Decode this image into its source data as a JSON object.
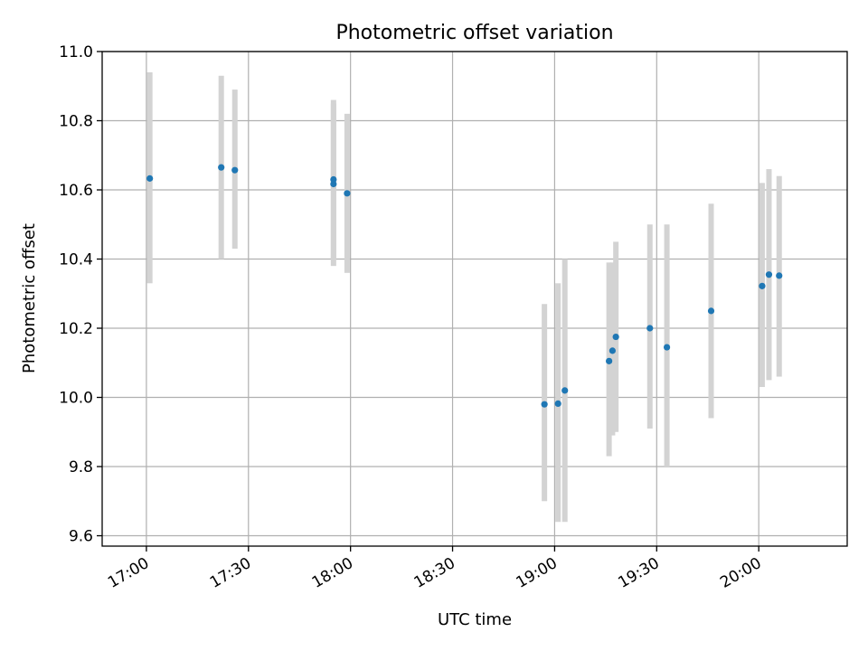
{
  "chart_data": {
    "type": "scatter",
    "title": "Photometric offset variation",
    "xlabel": "UTC time",
    "ylabel": "Photometric offset",
    "x_unit": "UTC time (HH:MM)",
    "xlim": [
      "16:47",
      "20:26"
    ],
    "ylim": [
      9.57,
      11.0
    ],
    "grid": true,
    "x_ticks": [
      "17:00",
      "17:30",
      "18:00",
      "18:30",
      "19:00",
      "19:30",
      "20:00"
    ],
    "y_ticks": [
      "9.6",
      "9.8",
      "10.0",
      "10.2",
      "10.4",
      "10.6",
      "10.8",
      "11.0"
    ],
    "point_color": "#1f77b4",
    "errorbar_color": "#d3d3d3",
    "points": [
      {
        "x": "17:01",
        "y": 10.633,
        "lo": 10.33,
        "hi": 10.94
      },
      {
        "x": "17:22",
        "y": 10.665,
        "lo": 10.4,
        "hi": 10.93
      },
      {
        "x": "17:26",
        "y": 10.657,
        "lo": 10.43,
        "hi": 10.89
      },
      {
        "x": "17:55",
        "y": 10.63,
        "lo": 10.4,
        "hi": 10.86
      },
      {
        "x": "17:55",
        "y": 10.617,
        "lo": 10.38,
        "hi": 10.85
      },
      {
        "x": "17:59",
        "y": 10.59,
        "lo": 10.36,
        "hi": 10.82
      },
      {
        "x": "18:57",
        "y": 9.98,
        "lo": 9.7,
        "hi": 10.27
      },
      {
        "x": "19:01",
        "y": 9.982,
        "lo": 9.64,
        "hi": 10.33
      },
      {
        "x": "19:03",
        "y": 10.02,
        "lo": 9.64,
        "hi": 10.4
      },
      {
        "x": "19:16",
        "y": 10.105,
        "lo": 9.83,
        "hi": 10.39
      },
      {
        "x": "19:17",
        "y": 10.135,
        "lo": 9.89,
        "hi": 10.39
      },
      {
        "x": "19:18",
        "y": 10.175,
        "lo": 9.9,
        "hi": 10.45
      },
      {
        "x": "19:28",
        "y": 10.2,
        "lo": 9.91,
        "hi": 10.5
      },
      {
        "x": "19:33",
        "y": 10.145,
        "lo": 9.8,
        "hi": 10.5
      },
      {
        "x": "19:46",
        "y": 10.25,
        "lo": 9.94,
        "hi": 10.56
      },
      {
        "x": "20:01",
        "y": 10.322,
        "lo": 10.03,
        "hi": 10.62
      },
      {
        "x": "20:03",
        "y": 10.355,
        "lo": 10.05,
        "hi": 10.66
      },
      {
        "x": "20:06",
        "y": 10.352,
        "lo": 10.06,
        "hi": 10.64
      }
    ]
  }
}
